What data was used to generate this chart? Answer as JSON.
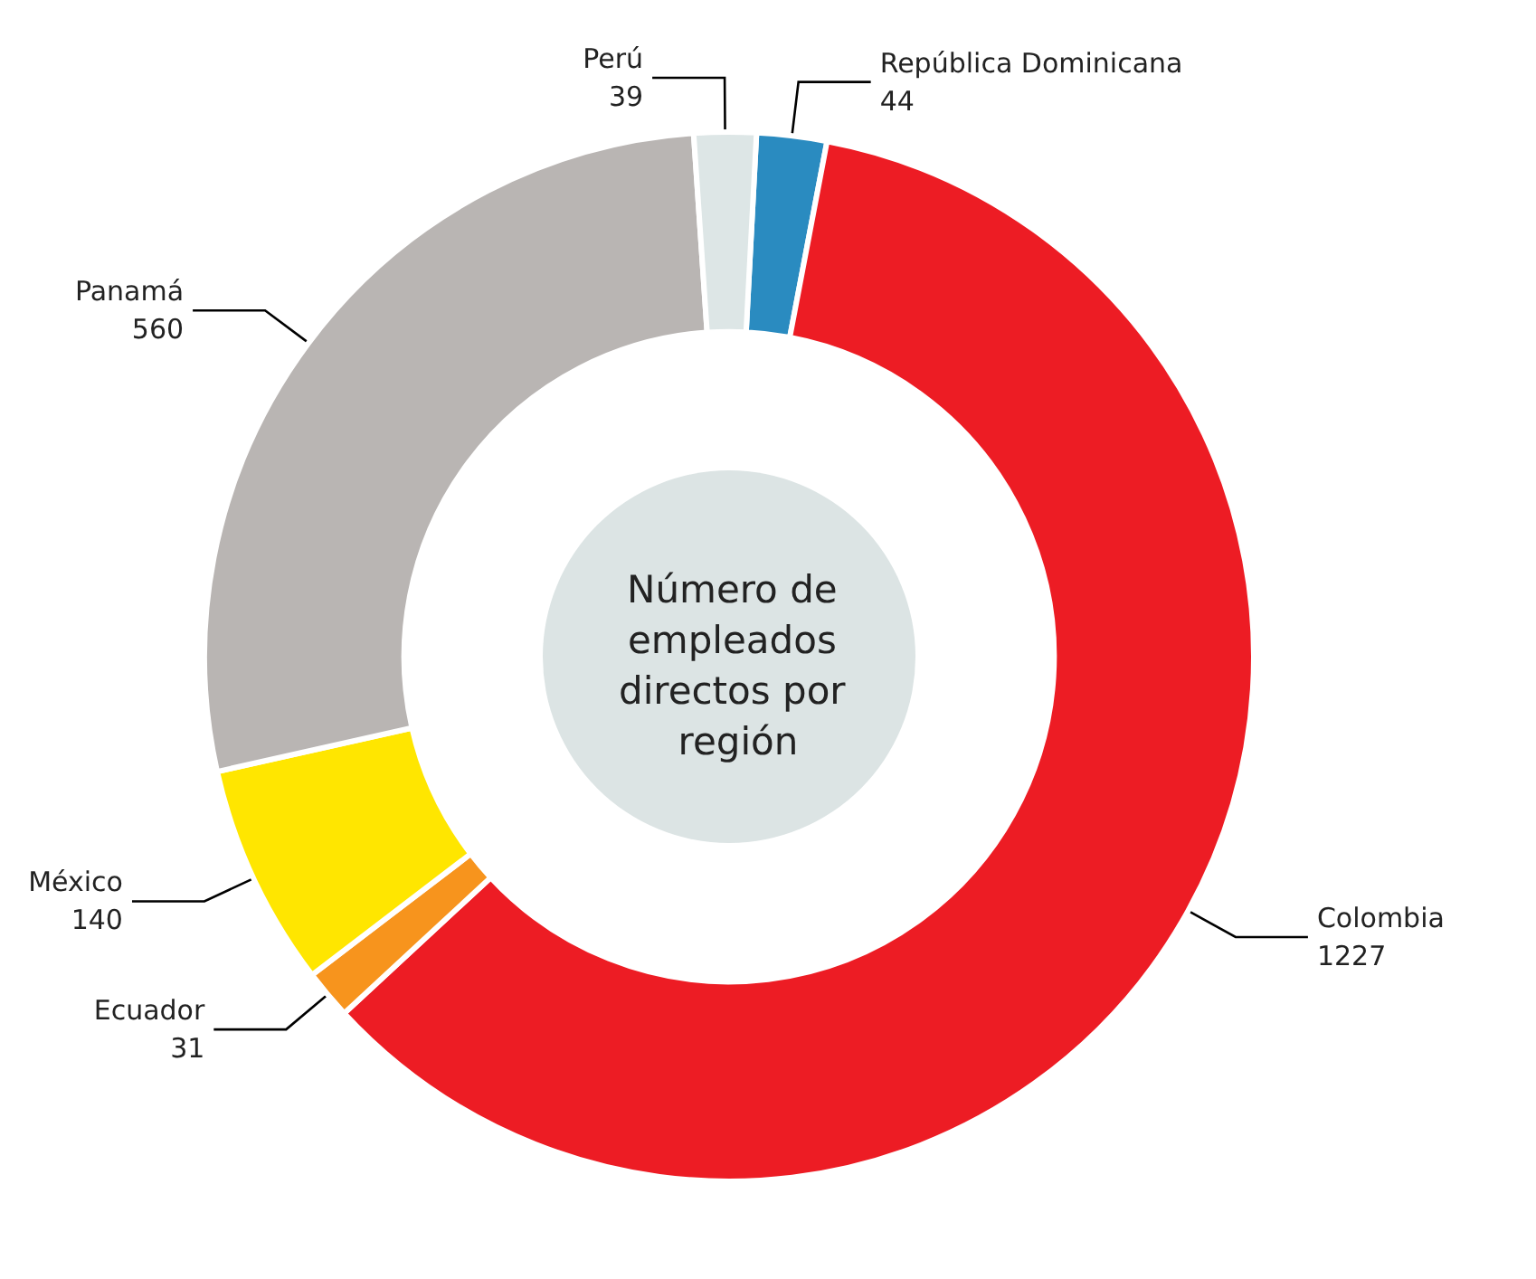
{
  "chart_data": {
    "type": "donut",
    "title": "Número de empleados directos por región",
    "categories": [
      "República Dominicana",
      "Colombia",
      "Ecuador",
      "México",
      "Panamá",
      "Perú"
    ],
    "values": [
      44,
      1227,
      31,
      140,
      560,
      39
    ],
    "colors": [
      "#2a8bc0",
      "#ed1c24",
      "#f7941d",
      "#ffe600",
      "#b9b5b3",
      "#dde6e6"
    ],
    "data_labels": true,
    "legend": false
  }
}
